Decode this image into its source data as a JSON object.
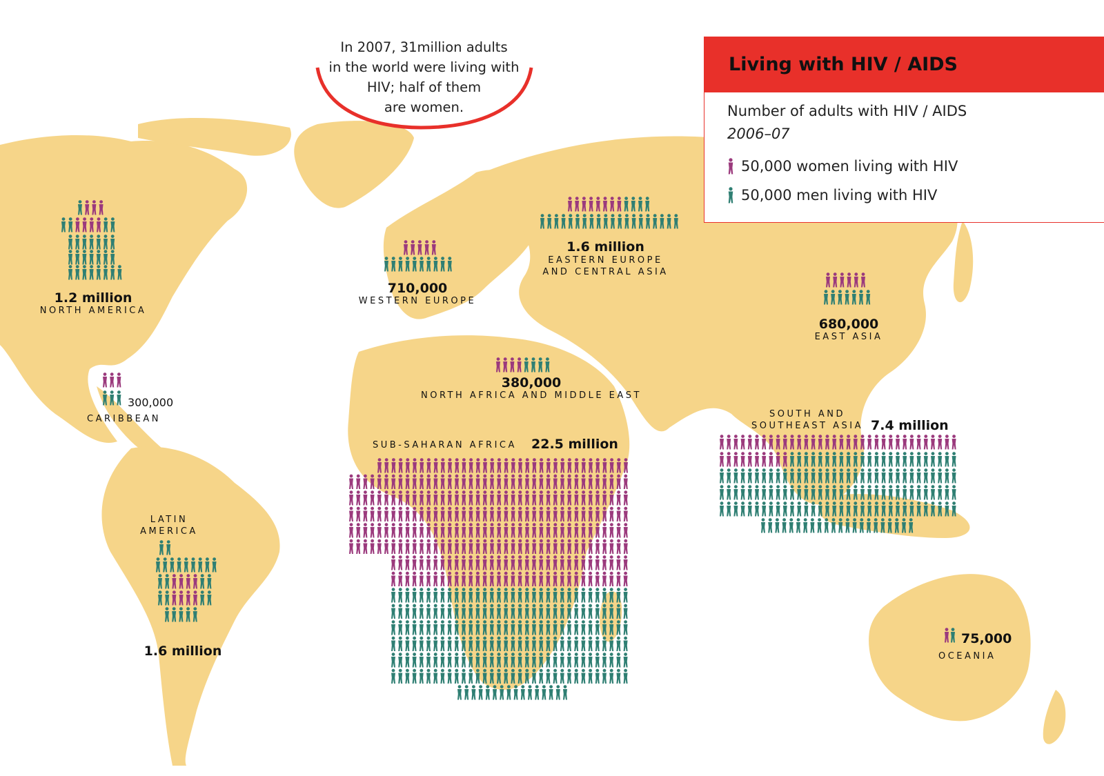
{
  "title": "Living with HIV / AIDS",
  "subtitle": "Number of adults with HIV / AIDS",
  "period": "2006–07",
  "callout": {
    "line1": "In 2007, 31million adults",
    "line2": "in the world were living with",
    "line3": "HIV; half of them",
    "line4": "are women."
  },
  "legend": {
    "women": "50,000 women living with HIV",
    "men": "50,000 men living with HIV"
  },
  "colors": {
    "land": "#f6d589",
    "women": "#9b3a7d",
    "men": "#2f7f73",
    "accent": "#e8302a"
  },
  "regions": [
    {
      "id": "north-america",
      "name": "NORTH AMERICA",
      "value": "1.2 million"
    },
    {
      "id": "caribbean",
      "name": "CARIBBEAN",
      "value": "300,000"
    },
    {
      "id": "latin-america",
      "name_line1": "LATIN",
      "name_line2": "AMERICA",
      "value": "1.6 million"
    },
    {
      "id": "western-europe",
      "name": "WESTERN EUROPE",
      "value": "710,000"
    },
    {
      "id": "eastern-europe",
      "name_line1": "EASTERN EUROPE",
      "name_line2": "AND CENTRAL ASIA",
      "value": "1.6 million"
    },
    {
      "id": "east-asia",
      "name": "EAST ASIA",
      "value": "680,000"
    },
    {
      "id": "north-africa",
      "name": "NORTH AFRICA AND MIDDLE EAST",
      "value": "380,000"
    },
    {
      "id": "sub-saharan",
      "name": "SUB-SAHARAN AFRICA",
      "value": "22.5 million"
    },
    {
      "id": "south-asia",
      "name_line1": "SOUTH AND",
      "name_line2": "SOUTHEAST ASIA",
      "value": "7.4 million"
    },
    {
      "id": "oceania",
      "name": "OCEANIA",
      "value": "75,000"
    }
  ]
}
